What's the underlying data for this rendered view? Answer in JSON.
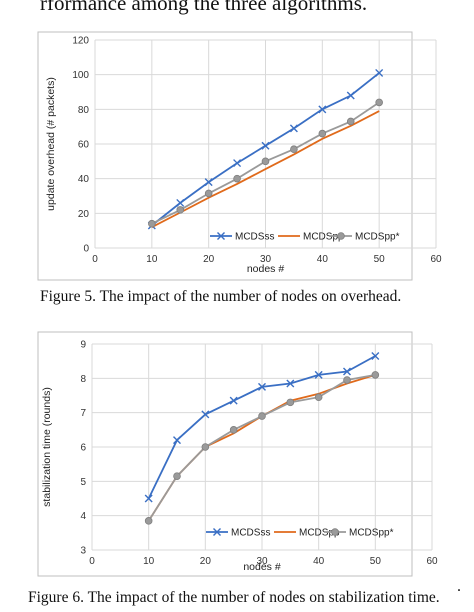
{
  "page": {
    "top_text": "rformance among the three algorithms.",
    "trailing_dot": "."
  },
  "chart_data": [
    {
      "type": "line",
      "x": [
        10,
        15,
        20,
        25,
        30,
        35,
        40,
        45,
        50
      ],
      "xlabel": "nodes #",
      "ylabel": "update overhead (# packets)",
      "xlim": [
        0,
        60
      ],
      "ylim": [
        0,
        120
      ],
      "xticks": [
        "0",
        "10",
        "20",
        "30",
        "40",
        "50",
        "60"
      ],
      "yticks": [
        "0",
        "20",
        "40",
        "60",
        "80",
        "100",
        "120"
      ],
      "grid": true,
      "legend": "bottom-right",
      "caption": "Figure 5.    The impact of the number of nodes on overhead.",
      "series": [
        {
          "name": "MCDSss",
          "color": "#3a6fc4",
          "marker": "x",
          "values": [
            13,
            26,
            38,
            49,
            59,
            69,
            80,
            88,
            101
          ]
        },
        {
          "name": "MCDSpp",
          "color": "#e06a1b",
          "marker": "none",
          "values": [
            12,
            20.5,
            29,
            37,
            45.5,
            54,
            63,
            70.5,
            79
          ]
        },
        {
          "name": "MCDSpp*",
          "color": "#9a9a9a",
          "marker": "circle",
          "values": [
            14,
            22,
            31.5,
            40,
            50,
            57,
            66,
            73,
            84
          ]
        }
      ]
    },
    {
      "type": "line",
      "x": [
        10,
        15,
        20,
        25,
        30,
        35,
        40,
        45,
        50
      ],
      "xlabel": "nodes #",
      "ylabel": "stabilization time (rounds)",
      "xlim": [
        0,
        60
      ],
      "ylim": [
        3,
        9
      ],
      "xticks": [
        "0",
        "10",
        "20",
        "30",
        "40",
        "50",
        "60"
      ],
      "yticks": [
        "3",
        "4",
        "5",
        "6",
        "7",
        "8",
        "9"
      ],
      "grid": true,
      "legend": "bottom-right",
      "caption": "Figure 6.    The impact of the number of nodes on stabilization time.",
      "series": [
        {
          "name": "MCDSss",
          "color": "#3a6fc4",
          "marker": "x",
          "values": [
            4.5,
            6.2,
            6.95,
            7.35,
            7.75,
            7.85,
            8.1,
            8.2,
            8.65
          ]
        },
        {
          "name": "MCDSpp",
          "color": "#e06a1b",
          "marker": "none",
          "values": [
            3.85,
            5.15,
            6.0,
            6.4,
            6.9,
            7.35,
            7.55,
            7.85,
            8.1
          ]
        },
        {
          "name": "MCDSpp*",
          "color": "#9a9a9a",
          "marker": "circle",
          "values": [
            3.85,
            5.15,
            6.0,
            6.5,
            6.9,
            7.3,
            7.45,
            7.95,
            8.1
          ]
        }
      ]
    }
  ]
}
